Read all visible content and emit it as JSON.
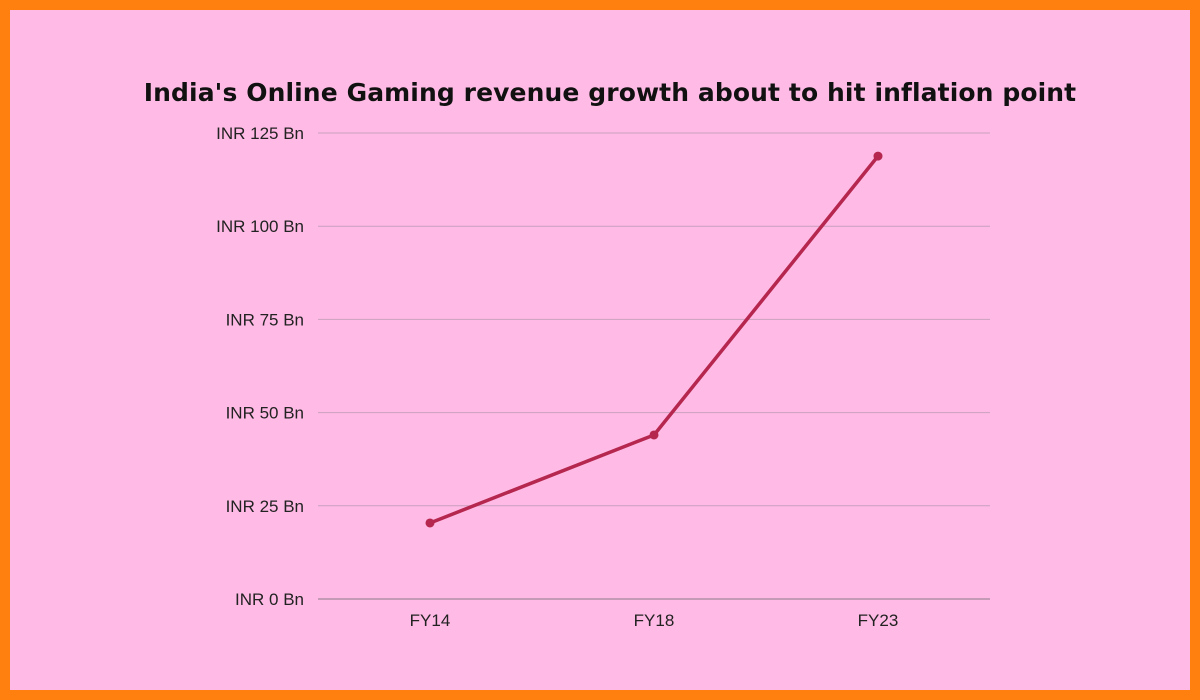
{
  "colors": {
    "background": "#ffbbe6",
    "border": "#ff7f0f",
    "series": "#b5274e",
    "grid": "#c9a0bd",
    "baseline": "#8a7a86"
  },
  "chart_data": {
    "type": "line",
    "title": "India's Online Gaming revenue growth about to hit inflation point",
    "xlabel": "",
    "ylabel": "",
    "categories": [
      "FY14",
      "FY18",
      "FY23"
    ],
    "series": [
      {
        "values": [
          20.4,
          44.0,
          118.8
        ]
      }
    ],
    "ylim": [
      0,
      125
    ],
    "yticks": [
      0,
      25,
      50,
      75,
      100,
      125
    ],
    "ytick_labels": [
      "INR 0 Bn",
      "INR 25 Bn",
      "INR 50 Bn",
      "INR 75 Bn",
      "INR 100 Bn",
      "INR 125 Bn"
    ],
    "grid": true,
    "legend": "none"
  }
}
